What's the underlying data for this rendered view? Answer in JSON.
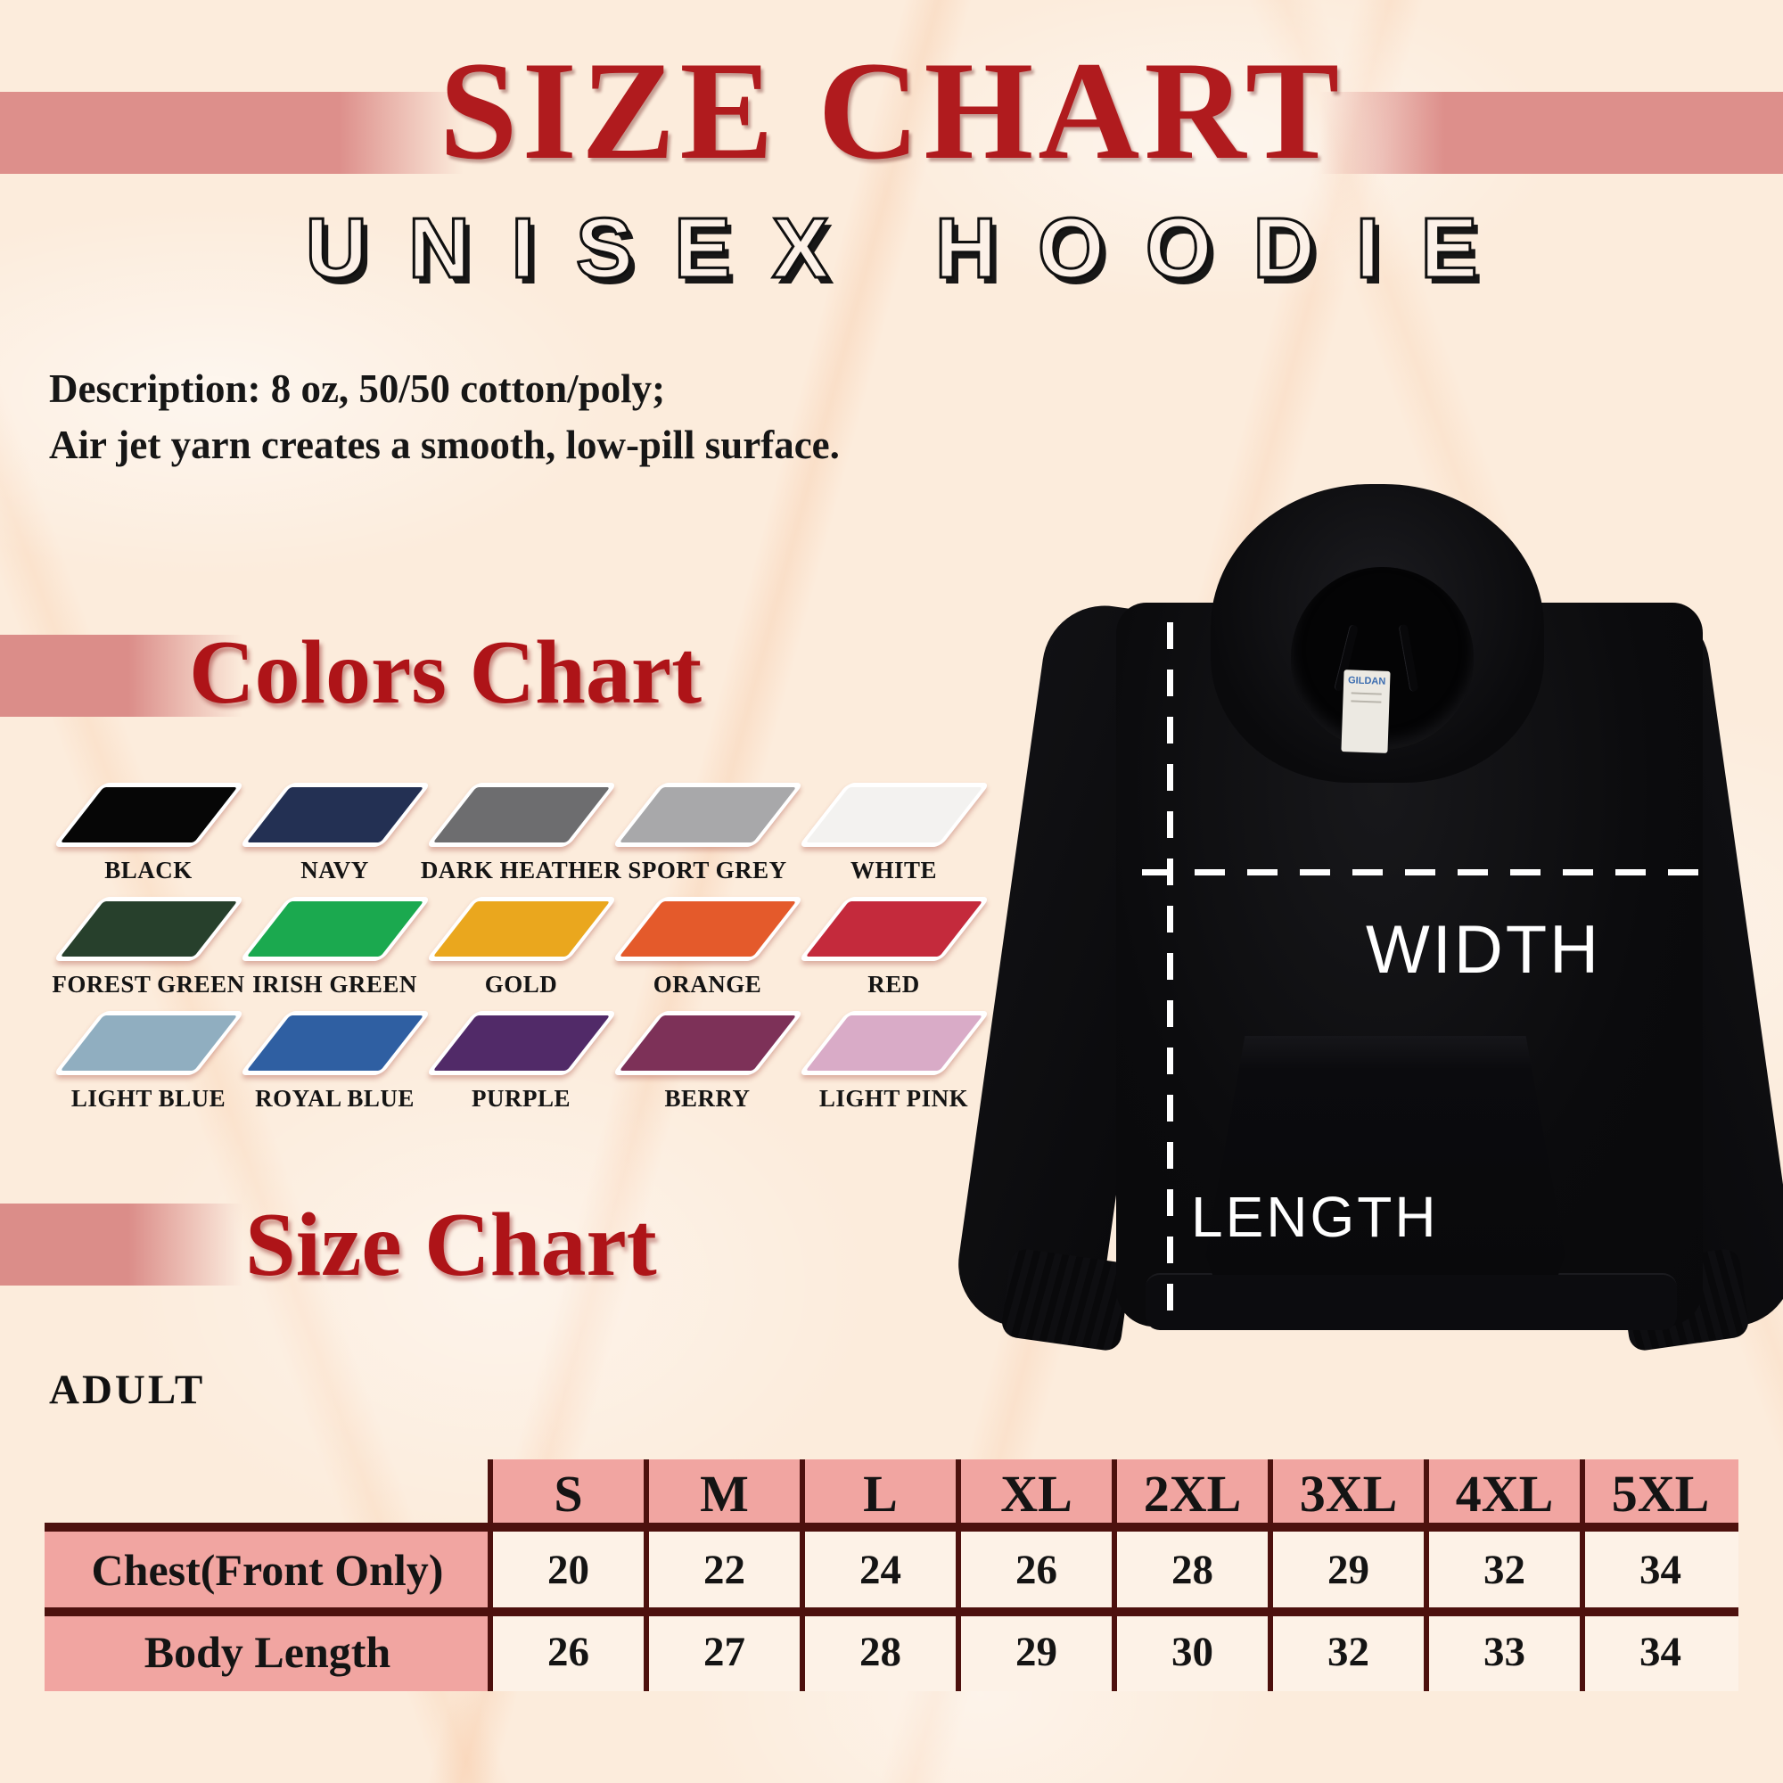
{
  "header": {
    "title": "SIZE CHART",
    "subtitle": "UNISEX HOODIE"
  },
  "description": {
    "line1": "Description: 8 oz, 50/50 cotton/poly;",
    "line2": "Air jet yarn creates a smooth, low-pill surface."
  },
  "colors_chart": {
    "heading": "Colors Chart",
    "swatches": [
      {
        "name": "BLACK",
        "hex": "#060606"
      },
      {
        "name": "NAVY",
        "hex": "#233053"
      },
      {
        "name": "DARK HEATHER",
        "hex": "#6d6d6f"
      },
      {
        "name": "SPORT GREY",
        "hex": "#a8a8aa"
      },
      {
        "name": "WHITE",
        "hex": "#f3f2f0"
      },
      {
        "name": "FOREST GREEN",
        "hex": "#27402c"
      },
      {
        "name": "IRISH GREEN",
        "hex": "#1ba94f"
      },
      {
        "name": "GOLD",
        "hex": "#eaa71e"
      },
      {
        "name": "ORANGE",
        "hex": "#e45a2b"
      },
      {
        "name": "RED",
        "hex": "#c42a3c"
      },
      {
        "name": "LIGHT BLUE",
        "hex": "#90aec0"
      },
      {
        "name": "ROYAL BLUE",
        "hex": "#2f5fa2"
      },
      {
        "name": "PURPLE",
        "hex": "#512a68"
      },
      {
        "name": "BERRY",
        "hex": "#7d3158"
      },
      {
        "name": "LIGHT PINK",
        "hex": "#d9abc7"
      }
    ]
  },
  "measure_diagram": {
    "width_label": "WIDTH",
    "length_label": "LENGTH",
    "tag_text": "GILDAN"
  },
  "size_chart": {
    "heading": "Size Chart",
    "group_label": "ADULT",
    "columns": [
      "S",
      "M",
      "L",
      "XL",
      "2XL",
      "3XL",
      "4XL",
      "5XL"
    ],
    "rows": [
      {
        "label": "Chest(Front Only)",
        "values": [
          "20",
          "22",
          "24",
          "26",
          "28",
          "29",
          "32",
          "34"
        ]
      },
      {
        "label": "Body Length",
        "values": [
          "26",
          "27",
          "28",
          "29",
          "30",
          "32",
          "33",
          "34"
        ]
      }
    ]
  },
  "theme": {
    "title_red": "#b01b1e",
    "heading_red": "#ae1418",
    "ribbon_pink": "#db8d89",
    "table_header_pink": "#f1a5a1",
    "table_cell_cream": "#fdf2e7",
    "table_border_maroon": "#4d110e",
    "paper_background": "#fcecdc",
    "measure_line_white": "#ffffff"
  }
}
